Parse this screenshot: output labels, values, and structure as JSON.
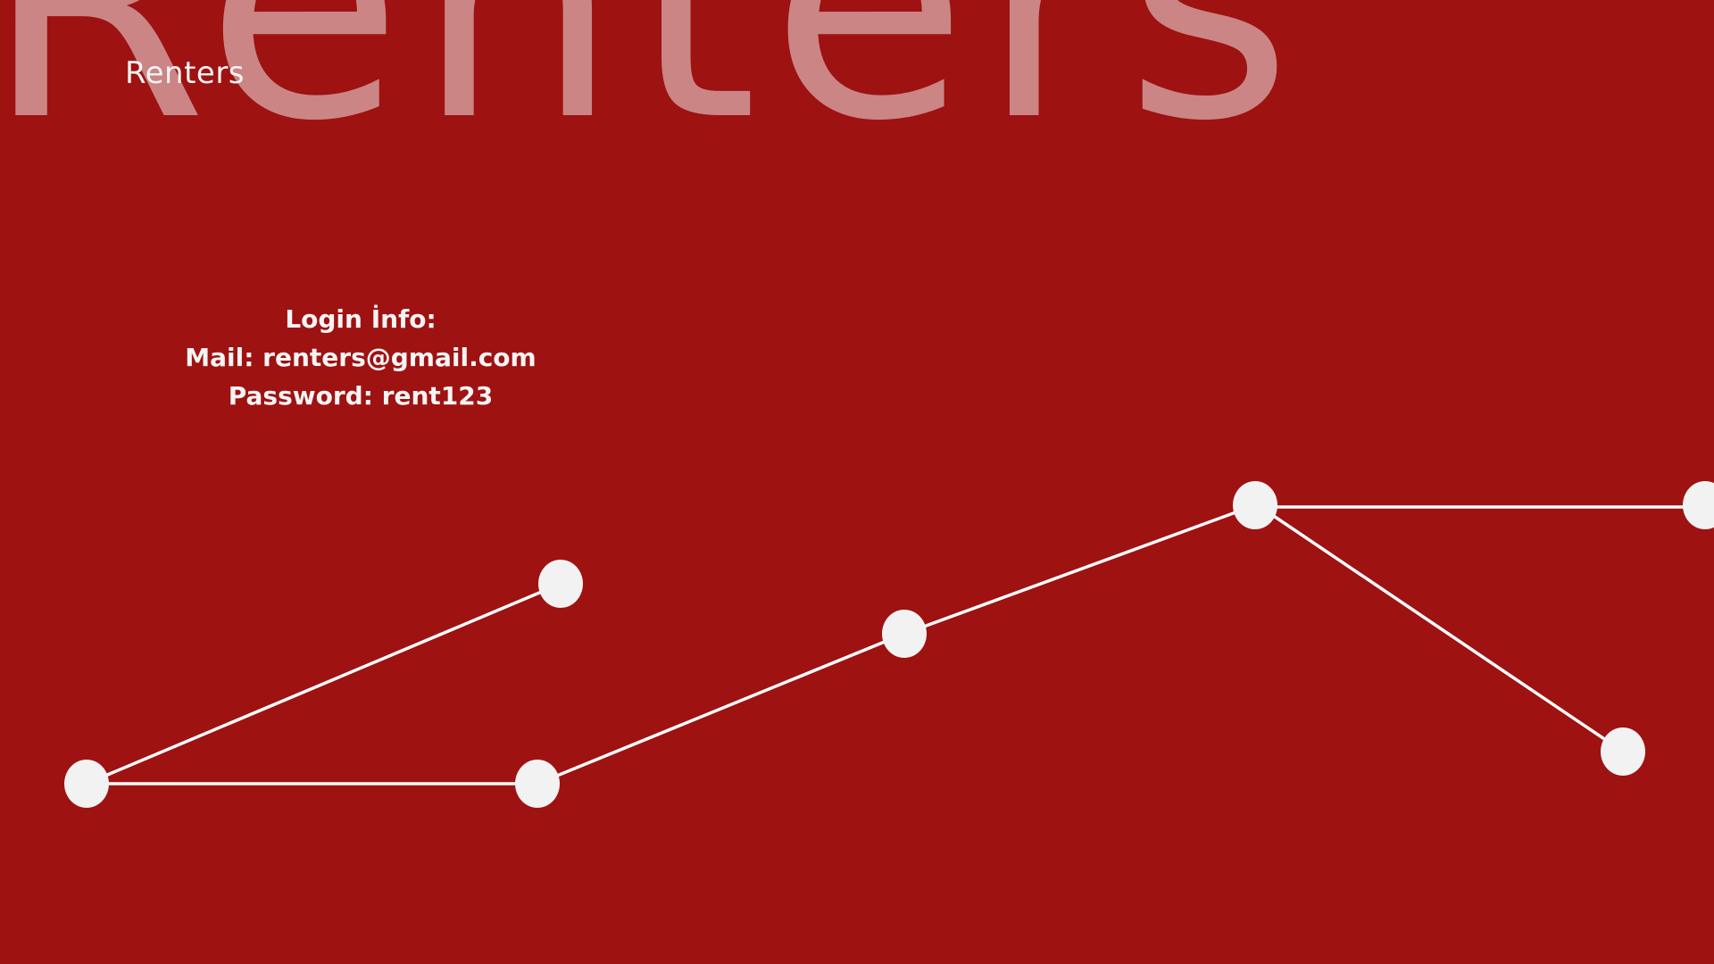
{
  "background": {
    "color": "#9e1212",
    "watermark_text": "Renters"
  },
  "brand": {
    "name": "Renters"
  },
  "login_info": {
    "heading": "Login İnfo:",
    "mail_line": "Mail: renters@gmail.com",
    "password_line": "Password: rent123"
  },
  "decoration": {
    "line_color": "#ffffff",
    "node_color": "#f2f2f2",
    "node_count": 8
  }
}
